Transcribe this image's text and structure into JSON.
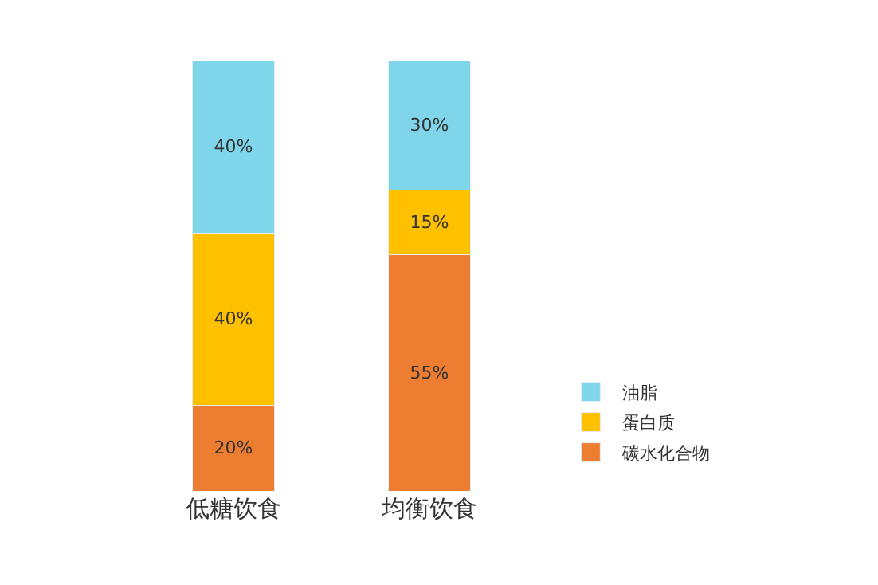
{
  "chart_data": {
    "type": "bar",
    "stacked": true,
    "categories": [
      "低糖饮食",
      "均衡饮食"
    ],
    "legend": "right",
    "ylim": [
      0,
      100
    ],
    "tick_labels": "x",
    "series": [
      {
        "name": "碳水化合物",
        "color": "#ed7d31",
        "values": [
          20,
          55
        ],
        "value_labels": [
          "20%",
          "55%"
        ]
      },
      {
        "name": "蛋白质",
        "color": "#ffc000",
        "values": [
          40,
          15
        ],
        "value_labels": [
          "40%",
          "15%"
        ]
      },
      {
        "name": "油脂",
        "color": "#7fd6ea",
        "values": [
          40,
          30
        ],
        "value_labels": [
          "40%",
          "30%"
        ]
      }
    ]
  }
}
